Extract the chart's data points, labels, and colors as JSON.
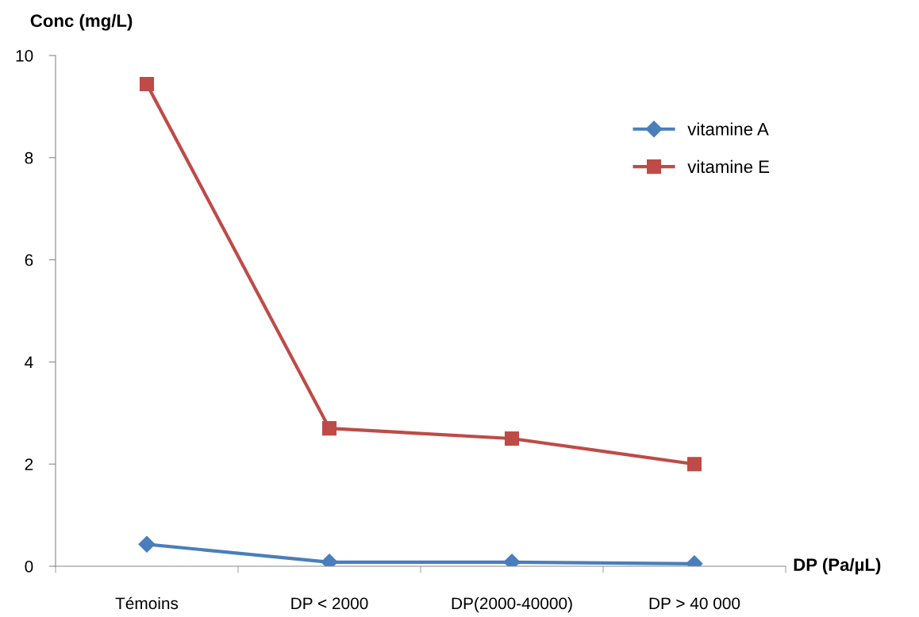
{
  "chart_data": {
    "type": "line",
    "xlabel": "DP (Pa/µL)",
    "ylabel": "Conc (mg/L)",
    "categories": [
      "Témoins",
      "DP < 2000",
      "DP(2000-40000)",
      "DP > 40 000"
    ],
    "series": [
      {
        "name": "vitamine A",
        "color": "#4a7ebb",
        "marker": "diamond",
        "values": [
          0.43,
          0.08,
          0.08,
          0.05
        ]
      },
      {
        "name": "vitamine E",
        "color": "#be4b48",
        "marker": "square",
        "values": [
          9.44,
          2.7,
          2.5,
          2.0
        ]
      }
    ],
    "ylim": [
      0,
      10
    ],
    "yticks": [
      0,
      2,
      4,
      6,
      8,
      10
    ],
    "grid": false,
    "legend": "top right",
    "line_style": "solid"
  }
}
